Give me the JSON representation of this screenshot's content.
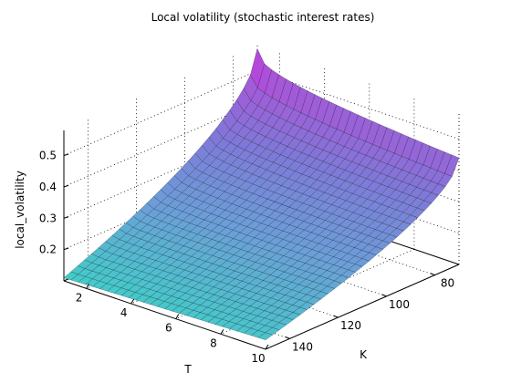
{
  "chart_data": {
    "type": "surface",
    "title": "Local volatility (stochastic interest rates)",
    "xlabel": "K",
    "ylabel": "T",
    "zlabel": "local_volatility",
    "x_axis": {
      "ticks": [
        80,
        100,
        120,
        140
      ],
      "range": [
        70,
        150
      ]
    },
    "y_axis": {
      "ticks": [
        2,
        4,
        6,
        8,
        10
      ],
      "range": [
        1,
        10
      ]
    },
    "z_axis": {
      "ticks": [
        0.2,
        0.3,
        0.4,
        0.5
      ],
      "range": [
        0.1,
        0.58
      ]
    },
    "grid": true,
    "colormap": [
      "#3fd0c8",
      "#6aa0d8",
      "#7e7ad8",
      "#a35ad8",
      "#e01ae4"
    ],
    "surface_corners": {
      "K_low_T_short": 0.57,
      "K_low_T_long": 0.44,
      "K_high_T_short": 0.11,
      "K_high_T_long": 0.13
    }
  }
}
